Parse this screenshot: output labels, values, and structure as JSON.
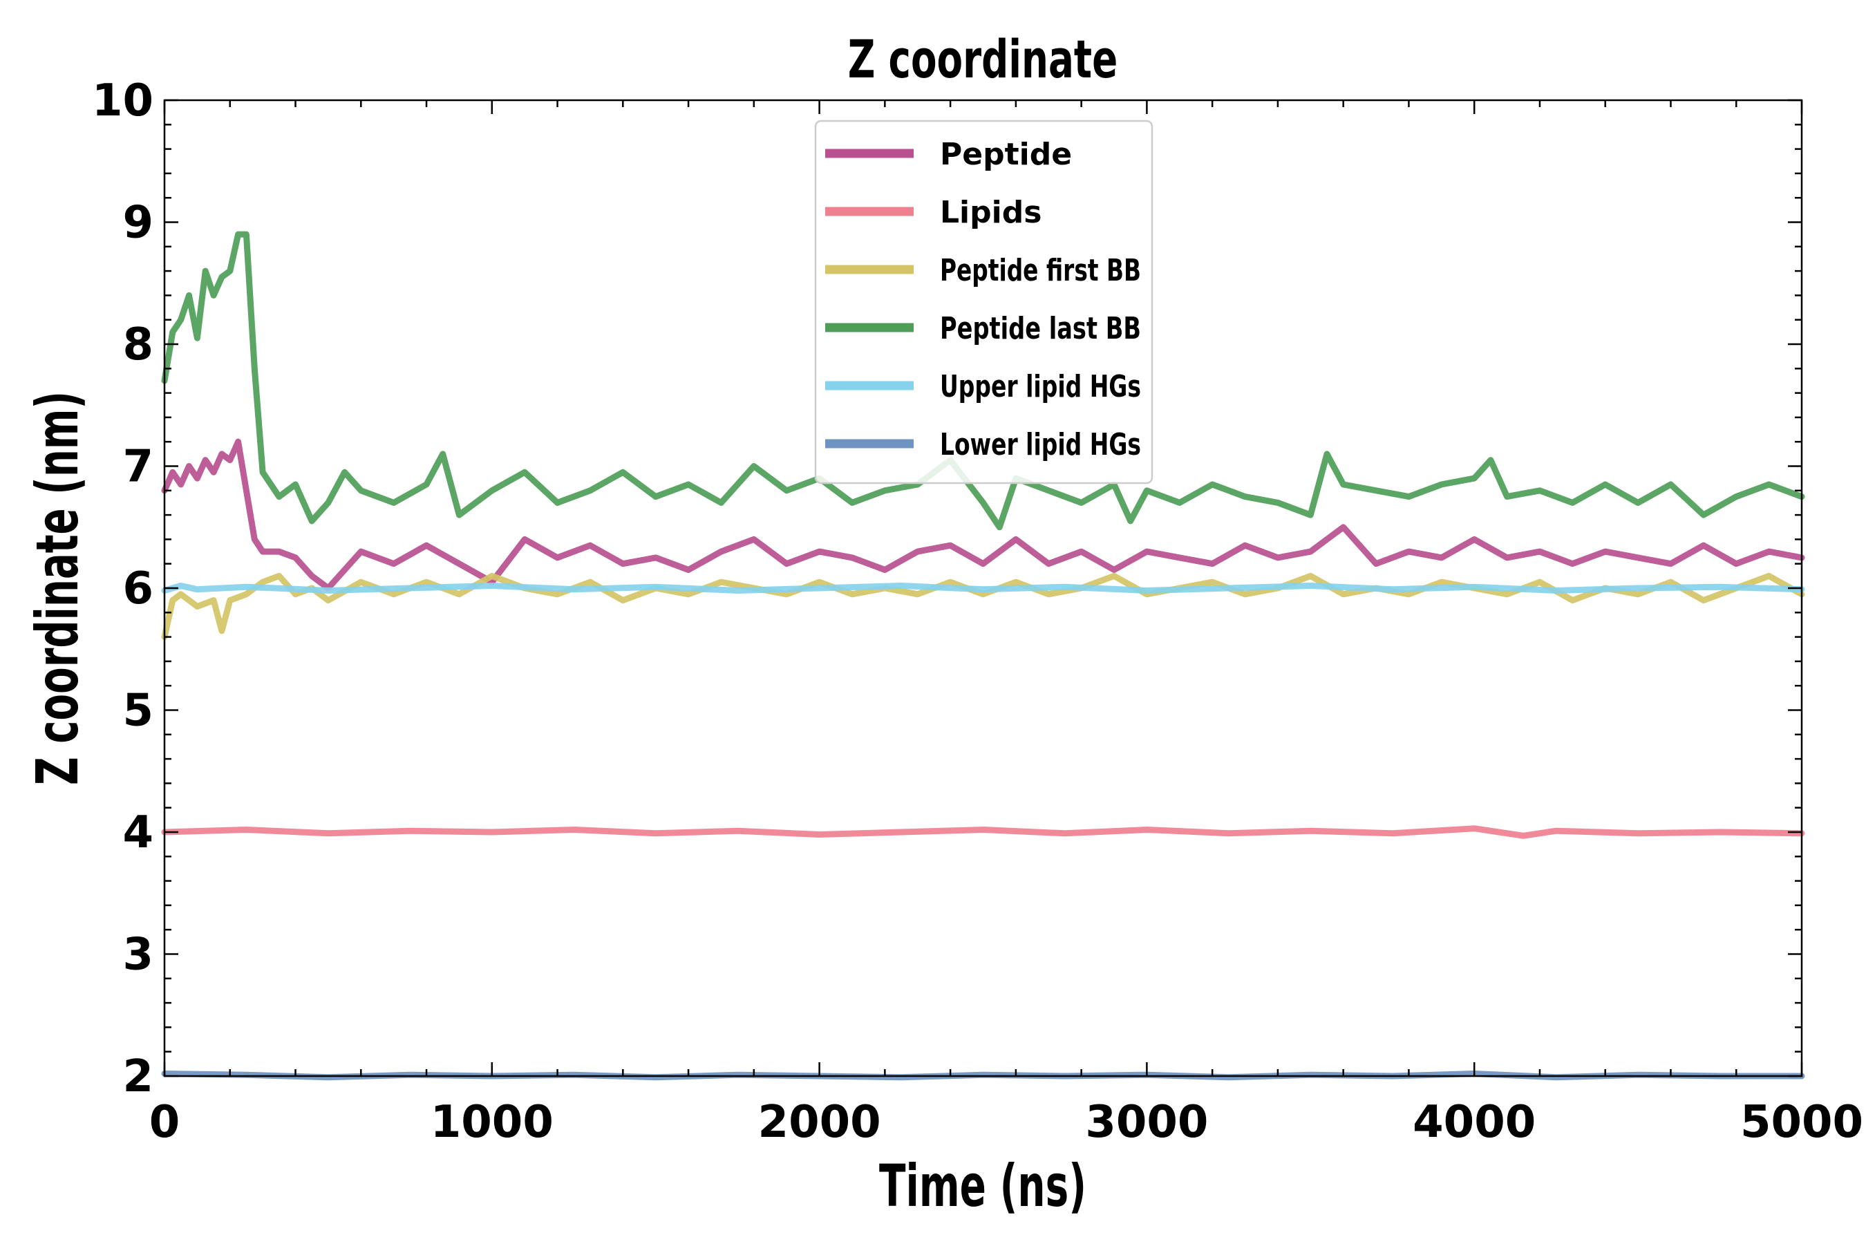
{
  "chart_data": {
    "type": "line",
    "title": "Z coordinate",
    "xlabel": "Time (ns)",
    "ylabel": "Z coordinate (nm)",
    "xlim": [
      0,
      5000
    ],
    "ylim": [
      2,
      10
    ],
    "xticks": [
      0,
      1000,
      2000,
      3000,
      4000,
      5000
    ],
    "yticks": [
      2,
      3,
      4,
      5,
      6,
      7,
      8,
      9,
      10
    ],
    "x_minor_step": 200,
    "y_minor_step": 0.2,
    "grid": false,
    "legend_position": "top-center",
    "series": [
      {
        "name": "Peptide",
        "color": "#b9508f",
        "x": [
          0,
          25,
          50,
          75,
          100,
          125,
          150,
          175,
          200,
          225,
          250,
          275,
          300,
          350,
          400,
          450,
          500,
          600,
          700,
          800,
          900,
          1000,
          1100,
          1200,
          1300,
          1400,
          1500,
          1600,
          1700,
          1800,
          1900,
          2000,
          2100,
          2200,
          2300,
          2400,
          2500,
          2600,
          2700,
          2800,
          2900,
          3000,
          3100,
          3200,
          3300,
          3400,
          3500,
          3600,
          3700,
          3800,
          3900,
          4000,
          4100,
          4200,
          4300,
          4400,
          4500,
          4600,
          4700,
          4800,
          4900,
          5000
        ],
        "y": [
          6.8,
          6.95,
          6.85,
          7.0,
          6.9,
          7.05,
          6.95,
          7.1,
          7.05,
          7.2,
          6.8,
          6.4,
          6.3,
          6.3,
          6.25,
          6.1,
          6.0,
          6.3,
          6.2,
          6.35,
          6.2,
          6.05,
          6.4,
          6.25,
          6.35,
          6.2,
          6.25,
          6.15,
          6.3,
          6.4,
          6.2,
          6.3,
          6.25,
          6.15,
          6.3,
          6.35,
          6.2,
          6.4,
          6.2,
          6.3,
          6.15,
          6.3,
          6.25,
          6.2,
          6.35,
          6.25,
          6.3,
          6.5,
          6.2,
          6.3,
          6.25,
          6.4,
          6.25,
          6.3,
          6.2,
          6.3,
          6.25,
          6.2,
          6.35,
          6.2,
          6.3,
          6.25
        ]
      },
      {
        "name": "Lipids",
        "color": "#ef8090",
        "x": [
          0,
          250,
          500,
          750,
          1000,
          1250,
          1500,
          1750,
          2000,
          2250,
          2500,
          2750,
          3000,
          3250,
          3500,
          3750,
          4000,
          4150,
          4250,
          4500,
          4750,
          5000
        ],
        "y": [
          4.0,
          4.02,
          3.99,
          4.01,
          4.0,
          4.02,
          3.99,
          4.01,
          3.98,
          4.0,
          4.02,
          3.99,
          4.02,
          3.99,
          4.01,
          3.99,
          4.03,
          3.97,
          4.01,
          3.99,
          4.0,
          3.99
        ]
      },
      {
        "name": "Peptide first BB",
        "color": "#d4c466",
        "x": [
          0,
          25,
          50,
          100,
          150,
          175,
          200,
          250,
          300,
          350,
          400,
          450,
          500,
          600,
          700,
          800,
          900,
          1000,
          1100,
          1200,
          1300,
          1400,
          1500,
          1600,
          1700,
          1800,
          1900,
          2000,
          2100,
          2200,
          2300,
          2400,
          2500,
          2600,
          2700,
          2800,
          2900,
          3000,
          3100,
          3200,
          3300,
          3400,
          3500,
          3600,
          3700,
          3800,
          3900,
          4000,
          4100,
          4200,
          4300,
          4400,
          4500,
          4600,
          4700,
          4800,
          4900,
          5000
        ],
        "y": [
          5.6,
          5.9,
          5.95,
          5.85,
          5.9,
          5.65,
          5.9,
          5.95,
          6.05,
          6.1,
          5.95,
          6.0,
          5.9,
          6.05,
          5.95,
          6.05,
          5.95,
          6.1,
          6.0,
          5.95,
          6.05,
          5.9,
          6.0,
          5.95,
          6.05,
          6.0,
          5.95,
          6.05,
          5.95,
          6.0,
          5.95,
          6.05,
          5.95,
          6.05,
          5.95,
          6.0,
          6.1,
          5.95,
          6.0,
          6.05,
          5.95,
          6.0,
          6.1,
          5.95,
          6.0,
          5.95,
          6.05,
          6.0,
          5.95,
          6.05,
          5.9,
          6.0,
          5.95,
          6.05,
          5.9,
          6.0,
          6.1,
          5.95
        ]
      },
      {
        "name": "Peptide last BB",
        "color": "#4e9e58",
        "x": [
          0,
          25,
          50,
          75,
          100,
          125,
          150,
          175,
          200,
          225,
          250,
          275,
          300,
          350,
          400,
          450,
          500,
          550,
          600,
          700,
          800,
          850,
          900,
          1000,
          1100,
          1200,
          1300,
          1400,
          1500,
          1600,
          1700,
          1800,
          1900,
          2000,
          2100,
          2200,
          2300,
          2400,
          2500,
          2550,
          2600,
          2700,
          2800,
          2900,
          2950,
          3000,
          3100,
          3200,
          3300,
          3400,
          3500,
          3550,
          3600,
          3700,
          3800,
          3900,
          4000,
          4050,
          4100,
          4200,
          4300,
          4400,
          4500,
          4600,
          4700,
          4800,
          4900,
          5000
        ],
        "y": [
          7.7,
          8.1,
          8.2,
          8.4,
          8.05,
          8.6,
          8.4,
          8.55,
          8.6,
          8.9,
          8.9,
          7.8,
          6.95,
          6.75,
          6.85,
          6.55,
          6.7,
          6.95,
          6.8,
          6.7,
          6.85,
          7.1,
          6.6,
          6.8,
          6.95,
          6.7,
          6.8,
          6.95,
          6.75,
          6.85,
          6.7,
          7.0,
          6.8,
          6.9,
          6.7,
          6.8,
          6.85,
          7.05,
          6.7,
          6.5,
          6.9,
          6.8,
          6.7,
          6.85,
          6.55,
          6.8,
          6.7,
          6.85,
          6.75,
          6.7,
          6.6,
          7.1,
          6.85,
          6.8,
          6.75,
          6.85,
          6.9,
          7.05,
          6.75,
          6.8,
          6.7,
          6.85,
          6.7,
          6.85,
          6.6,
          6.75,
          6.85,
          6.75
        ]
      },
      {
        "name": "Upper lipid HGs",
        "color": "#86d1ec",
        "x": [
          0,
          50,
          100,
          250,
          500,
          750,
          1000,
          1250,
          1500,
          1750,
          2000,
          2250,
          2500,
          2750,
          3000,
          3250,
          3500,
          3750,
          4000,
          4250,
          4500,
          4750,
          5000
        ],
        "y": [
          5.98,
          6.02,
          5.99,
          6.01,
          5.98,
          6.0,
          6.02,
          5.99,
          6.01,
          5.98,
          6.0,
          6.02,
          5.99,
          6.01,
          5.98,
          6.0,
          6.02,
          5.99,
          6.01,
          5.98,
          6.0,
          6.01,
          5.99
        ]
      },
      {
        "name": "Lower lipid HGs",
        "color": "#6d93c0",
        "x": [
          0,
          250,
          500,
          750,
          1000,
          1250,
          1500,
          1750,
          2000,
          2250,
          2500,
          2750,
          3000,
          3250,
          3500,
          3750,
          4000,
          4250,
          4500,
          4750,
          5000
        ],
        "y": [
          2.02,
          2.01,
          1.99,
          2.01,
          2.0,
          2.01,
          1.99,
          2.01,
          2.0,
          1.99,
          2.01,
          2.0,
          2.01,
          1.99,
          2.01,
          2.0,
          2.02,
          1.99,
          2.01,
          2.0,
          2.0
        ]
      }
    ]
  }
}
